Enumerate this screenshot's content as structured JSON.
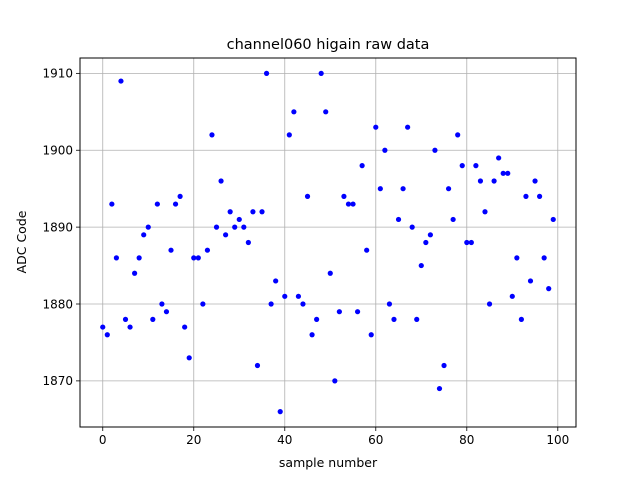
{
  "chart_data": {
    "type": "scatter",
    "title": "channel060 higain raw data",
    "xlabel": "sample number",
    "ylabel": "ADC Code",
    "xlim": [
      -5,
      104
    ],
    "ylim": [
      1864,
      1912
    ],
    "xticks": [
      0,
      20,
      40,
      60,
      80,
      100
    ],
    "yticks": [
      1870,
      1880,
      1890,
      1900,
      1910
    ],
    "grid": true,
    "marker_color": "#0000ff",
    "series": [
      {
        "x": [
          0,
          1,
          2,
          3,
          4,
          5,
          6,
          7,
          8,
          9,
          10,
          11,
          12,
          13,
          14,
          15,
          16,
          17,
          18,
          19,
          20,
          21,
          22,
          23,
          24,
          25,
          26,
          27,
          28,
          29,
          30,
          31,
          32,
          33,
          34,
          35,
          36,
          37,
          38,
          39,
          40,
          41,
          42,
          43,
          44,
          45,
          46,
          47,
          48,
          49,
          50,
          51,
          52,
          53,
          54,
          55,
          56,
          57,
          58,
          59,
          60,
          61,
          62,
          63,
          64,
          65,
          66,
          67,
          68,
          69,
          70,
          71,
          72,
          73,
          74,
          75,
          76,
          77,
          78,
          79,
          80,
          81,
          82,
          83,
          84,
          85,
          86,
          87,
          88,
          89,
          90,
          91,
          92,
          93,
          94,
          95,
          96,
          97,
          98,
          99
        ],
        "values": [
          1877,
          1876,
          1893,
          1886,
          1909,
          1878,
          1877,
          1884,
          1886,
          1889,
          1890,
          1878,
          1893,
          1880,
          1879,
          1887,
          1893,
          1894,
          1877,
          1873,
          1886,
          1886,
          1880,
          1887,
          1902,
          1890,
          1896,
          1889,
          1892,
          1890,
          1891,
          1890,
          1888,
          1892,
          1872,
          1892,
          1910,
          1880,
          1883,
          1866,
          1881,
          1902,
          1905,
          1881,
          1880,
          1894,
          1876,
          1878,
          1910,
          1905,
          1884,
          1870,
          1879,
          1894,
          1893,
          1893,
          1879,
          1898,
          1887,
          1876,
          1903,
          1895,
          1900,
          1880,
          1878,
          1891,
          1895,
          1903,
          1890,
          1878,
          1885,
          1888,
          1889,
          1900,
          1869,
          1872,
          1895,
          1891,
          1902,
          1898,
          1888,
          1888,
          1898,
          1896,
          1892,
          1880,
          1896,
          1899,
          1897,
          1897,
          1881,
          1886,
          1878,
          1894,
          1883,
          1896,
          1894,
          1886,
          1882,
          1891
        ]
      }
    ]
  }
}
